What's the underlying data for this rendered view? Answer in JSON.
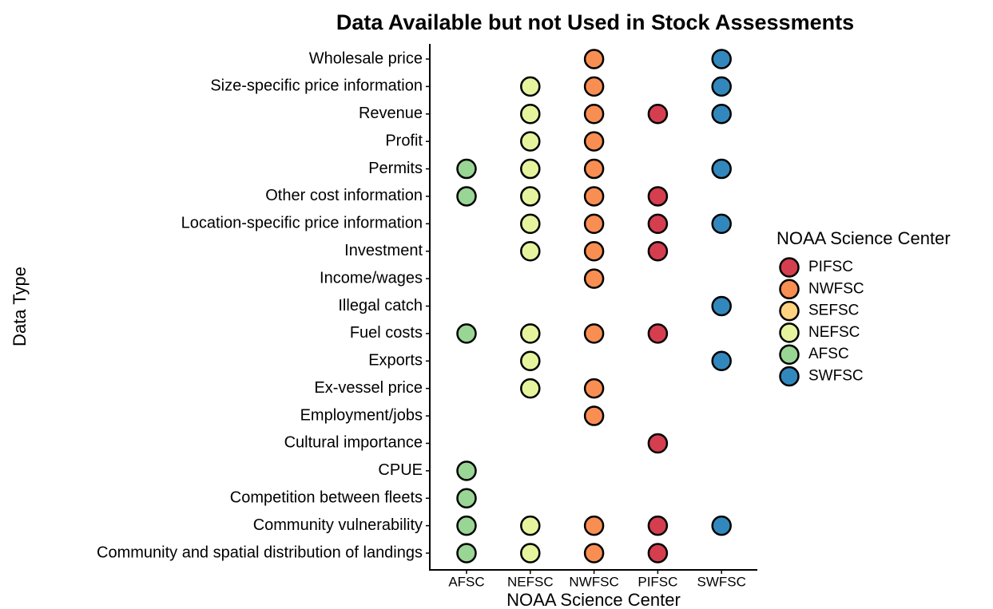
{
  "chart_data": {
    "type": "dot",
    "title": "Data Available but not Used in Stock Assessments",
    "x_label": "NOAA Science Center",
    "y_label": "Data Type",
    "legend_title": "NOAA Science Center",
    "legend": "right",
    "x_categories": [
      "AFSC",
      "NEFSC",
      "NWFSC",
      "PIFSC",
      "SWFSC"
    ],
    "categories": [
      "Wholesale price",
      "Size-specific price information",
      "Revenue",
      "Profit",
      "Permits",
      "Other cost information",
      "Location-specific price information",
      "Investment",
      "Income/wages",
      "Illegal catch",
      "Fuel costs",
      "Exports",
      "Ex-vessel price",
      "Employment/jobs",
      "Cultural importance",
      "CPUE",
      "Competition between fleets",
      "Community vulnerability",
      "Community and spatial distribution of landings"
    ],
    "series": [
      {
        "name": "PIFSC",
        "color": "#d53e4f",
        "values": [
          null,
          null,
          1,
          null,
          null,
          1,
          1,
          1,
          null,
          null,
          1,
          null,
          null,
          null,
          1,
          null,
          null,
          1,
          1
        ]
      },
      {
        "name": "NWFSC",
        "color": "#f98e52",
        "values": [
          1,
          1,
          1,
          1,
          1,
          1,
          1,
          1,
          1,
          null,
          1,
          null,
          1,
          1,
          null,
          null,
          null,
          1,
          1
        ]
      },
      {
        "name": "SEFSC",
        "color": "#fed481",
        "values": [
          null,
          null,
          null,
          null,
          null,
          null,
          null,
          null,
          null,
          null,
          null,
          null,
          null,
          null,
          null,
          null,
          null,
          null,
          null
        ]
      },
      {
        "name": "NEFSC",
        "color": "#e6f49d",
        "values": [
          null,
          1,
          1,
          1,
          1,
          1,
          1,
          1,
          null,
          null,
          1,
          1,
          1,
          null,
          null,
          null,
          null,
          1,
          1
        ]
      },
      {
        "name": "AFSC",
        "color": "#99d594",
        "values": [
          null,
          null,
          null,
          null,
          1,
          1,
          null,
          null,
          null,
          null,
          1,
          null,
          null,
          null,
          null,
          1,
          1,
          1,
          1
        ]
      },
      {
        "name": "SWFSC",
        "color": "#3288bd",
        "values": [
          1,
          1,
          1,
          null,
          1,
          null,
          1,
          null,
          null,
          1,
          null,
          1,
          null,
          null,
          null,
          null,
          null,
          1,
          null
        ]
      }
    ]
  }
}
